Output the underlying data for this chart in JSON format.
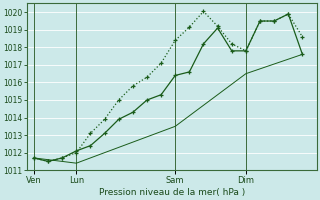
{
  "background_color": "#cce9e9",
  "grid_color": "#ffffff",
  "line_color": "#1a5c1a",
  "xlabel": "Pression niveau de la mer( hPa )",
  "ylim": [
    1011,
    1020.5
  ],
  "yticks": [
    1011,
    1012,
    1013,
    1014,
    1015,
    1016,
    1017,
    1018,
    1019,
    1020
  ],
  "xtick_labels": [
    "Ven",
    "Lun",
    "Sam",
    "Dim"
  ],
  "xtick_positions": [
    0,
    3,
    10,
    15
  ],
  "xlim": [
    -0.5,
    20
  ],
  "line1_x": [
    0,
    1,
    2,
    3,
    4,
    5,
    6,
    7,
    8,
    9,
    10,
    11,
    12,
    13,
    14,
    15,
    16,
    17,
    18,
    19
  ],
  "line1_y": [
    1011.7,
    1011.5,
    1011.7,
    1012.0,
    1013.1,
    1013.9,
    1015.0,
    1015.8,
    1016.3,
    1017.1,
    1018.4,
    1019.15,
    1020.05,
    1019.2,
    1018.2,
    1017.8,
    1019.5,
    1019.5,
    1019.9,
    1018.6
  ],
  "line2_x": [
    0,
    1,
    2,
    3,
    4,
    5,
    6,
    7,
    8,
    9,
    10,
    11,
    12,
    13,
    14,
    15,
    16,
    17,
    18,
    19
  ],
  "line2_y": [
    1011.7,
    1011.5,
    1011.7,
    1012.1,
    1012.4,
    1013.1,
    1013.9,
    1014.3,
    1015.0,
    1015.3,
    1016.4,
    1016.6,
    1018.2,
    1019.1,
    1017.8,
    1017.8,
    1019.5,
    1019.5,
    1019.9,
    1017.6
  ],
  "line3_x": [
    0,
    3,
    10,
    15,
    19
  ],
  "line3_y": [
    1011.7,
    1011.4,
    1013.5,
    1016.5,
    1017.6
  ]
}
